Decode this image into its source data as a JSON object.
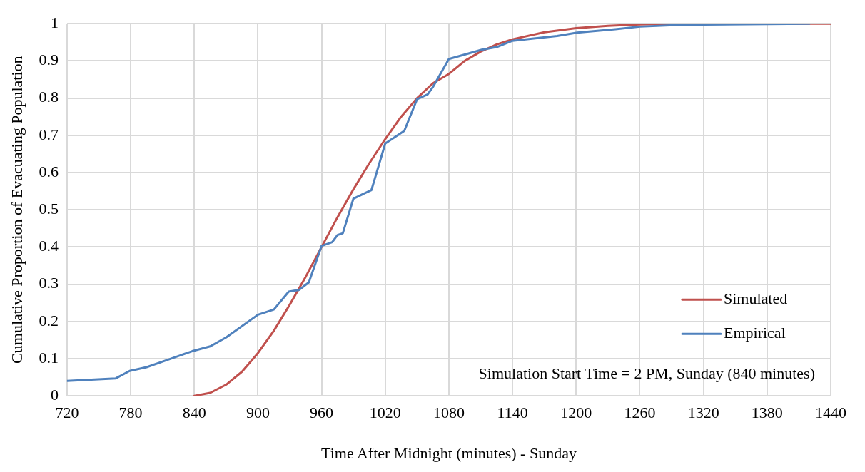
{
  "chart_data": {
    "type": "line",
    "xlabel": "Time After Midnight (minutes) - Sunday",
    "ylabel": "Cumulative Proportion of Evacuating Population",
    "xlim": [
      720,
      1440
    ],
    "xticks": [
      720,
      780,
      840,
      900,
      960,
      1020,
      1080,
      1140,
      1200,
      1260,
      1320,
      1380,
      1440
    ],
    "ylim": [
      0,
      1
    ],
    "yticks": [
      0,
      0.1,
      0.2,
      0.3,
      0.4,
      0.5,
      0.6,
      0.7,
      0.8,
      0.9,
      1
    ],
    "grid": true,
    "legend": "bottom right",
    "marker": "none",
    "line_style": "solid",
    "annotations": [
      "Simulation Start Time = 2 PM, Sunday (840 minutes)"
    ],
    "series": [
      {
        "name": "Simulated",
        "color": "#c0504d",
        "x": [
          840,
          855,
          870,
          885,
          900,
          915,
          930,
          945,
          960,
          975,
          990,
          1005,
          1020,
          1035,
          1050,
          1065,
          1080,
          1095,
          1110,
          1125,
          1140,
          1170,
          1200,
          1230,
          1260,
          1300,
          1440
        ],
        "values": [
          0,
          0.008,
          0.03,
          0.065,
          0.115,
          0.175,
          0.245,
          0.32,
          0.4,
          0.48,
          0.555,
          0.625,
          0.69,
          0.75,
          0.8,
          0.84,
          0.865,
          0.9,
          0.925,
          0.944,
          0.958,
          0.977,
          0.988,
          0.994,
          0.998,
          1,
          1
        ]
      },
      {
        "name": "Empirical",
        "color": "#4f81bd",
        "x": [
          720,
          766,
          779,
          795,
          838,
          855,
          870,
          900,
          915,
          929,
          939,
          948,
          960,
          970,
          975,
          980,
          990,
          1007,
          1020,
          1038,
          1050,
          1060,
          1065,
          1080,
          1095,
          1111,
          1125,
          1140,
          1182,
          1201,
          1237,
          1260,
          1300,
          1420
        ],
        "values": [
          0.04,
          0.047,
          0.067,
          0.077,
          0.12,
          0.133,
          0.157,
          0.218,
          0.232,
          0.28,
          0.285,
          0.305,
          0.403,
          0.413,
          0.432,
          0.437,
          0.53,
          0.553,
          0.678,
          0.712,
          0.797,
          0.81,
          0.83,
          0.905,
          0.917,
          0.93,
          0.937,
          0.954,
          0.967,
          0.976,
          0.985,
          0.992,
          0.997,
          1
        ]
      }
    ]
  }
}
